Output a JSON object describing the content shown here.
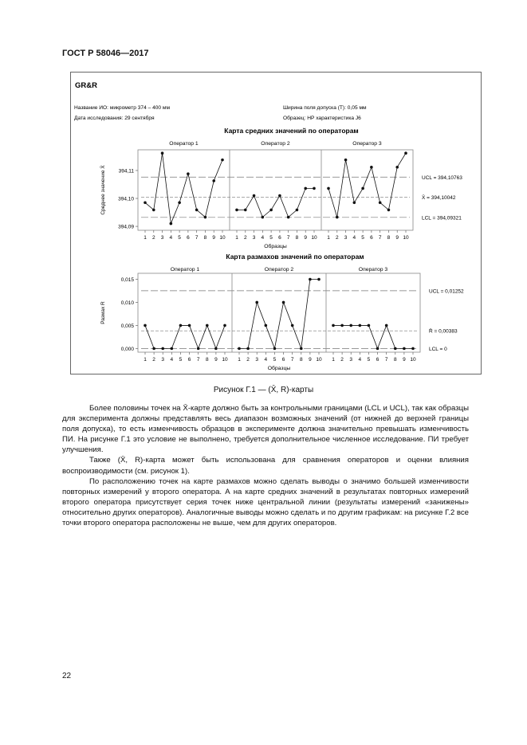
{
  "header": "ГОСТ Р 58046—2017",
  "figure": {
    "title": "GR&R",
    "info": {
      "instrument": "Название ИО: микрометр 374 – 400 мм",
      "date": "Дата исследования: 29 сентября",
      "tolerance": "Ширина поля допуска (T): 0,05 мм",
      "sample": "Образец: НР характеристика J6"
    },
    "caption": "Рисунок Г.1 — (X̄, R)-карты"
  },
  "chart_data": [
    {
      "type": "line",
      "title": "Карта средних значений по операторам",
      "ylabel": "Среднее значение X̄",
      "xlabel": "Образцы",
      "panels": [
        "Оператор 1",
        "Оператор 2",
        "Оператор 3"
      ],
      "categories": [
        1,
        2,
        3,
        4,
        5,
        6,
        7,
        8,
        9,
        10
      ],
      "yticks": [
        "394,09",
        "394,10",
        "394,11"
      ],
      "ytick_values": [
        394.09,
        394.1,
        394.11
      ],
      "ylim": [
        394.0886,
        394.1174
      ],
      "series": [
        {
          "values": [
            394.0985,
            394.0959,
            394.1162,
            394.091,
            394.0985,
            394.1088,
            394.0959,
            394.0933,
            394.1063,
            394.1138
          ]
        },
        {
          "values": [
            394.0959,
            394.0959,
            394.101,
            394.0933,
            394.0959,
            394.101,
            394.0933,
            394.0959,
            394.1036,
            394.1036
          ]
        },
        {
          "values": [
            394.1036,
            394.0933,
            394.1138,
            394.0985,
            394.1036,
            394.1112,
            394.0985,
            394.0959,
            394.1112,
            394.1162
          ]
        }
      ],
      "lines": [
        {
          "label": "UCL = 394,10763",
          "value": 394.10763
        },
        {
          "label": "X̄ = 394,10042",
          "value": 394.10042
        },
        {
          "label": "LCL = 394,09321",
          "value": 394.09321
        }
      ],
      "grid": false
    },
    {
      "type": "line",
      "title": "Карта размахов значений по операторам",
      "ylabel": "Размах R",
      "xlabel": "Образцы",
      "panels": [
        "Оператор 1",
        "Оператор 2",
        "Оператор 3"
      ],
      "categories": [
        1,
        2,
        3,
        4,
        5,
        6,
        7,
        8,
        9,
        10
      ],
      "yticks": [
        "0,000",
        "0,005",
        "0,010",
        "0,015"
      ],
      "ytick_values": [
        0,
        0.005,
        0.01,
        0.015
      ],
      "ylim": [
        -0.0008,
        0.0163
      ],
      "series": [
        {
          "values": [
            0.005,
            0,
            0,
            0,
            0.005,
            0.005,
            0,
            0.005,
            0,
            0.005
          ]
        },
        {
          "values": [
            0,
            0,
            0.01,
            0.005,
            0,
            0.01,
            0.005,
            0,
            0.015,
            0.015
          ]
        },
        {
          "values": [
            0.005,
            0.005,
            0.005,
            0.005,
            0.005,
            0,
            0.005,
            0,
            0,
            0
          ]
        }
      ],
      "lines": [
        {
          "label": "UCL = 0,01252",
          "value": 0.01252
        },
        {
          "label": "R̄ = 0,00383",
          "value": 0.00383
        },
        {
          "label": "LCL = 0",
          "value": 0
        }
      ],
      "grid": false
    }
  ],
  "paragraphs": [
    "Более половины точек на X̄-карте должно быть за контрольными границами (LCL и UCL), так как образцы для эксперимента должны представлять весь диапазон возможных значений (от нижней до верхней границы поля допуска), то есть изменчивость образцов в эксперименте должна значительно превышать изменчивость ПИ. На рисунке Г.1 это условие не выполнено, требуется дополнительное численное исследование. ПИ требует улучшения.",
    "Также (X̄, R)-карта может быть использована для сравнения операторов и оценки влияния воспроизводимости (см. рисунок 1).",
    "По расположению точек на карте размахов можно сделать выводы о значимо большей изменчивости повторных измерений у второго оператора. А на карте средних значений в результатах повторных измерений второго оператора присутствует серия точек ниже центральной линии (результаты измерений «занижены» относительно других операторов). Аналогичные выводы можно сделать и по другим графикам: на рисунке Г.2 все точки второго оператора расположены не выше, чем для других операторов."
  ],
  "page_number": "22"
}
